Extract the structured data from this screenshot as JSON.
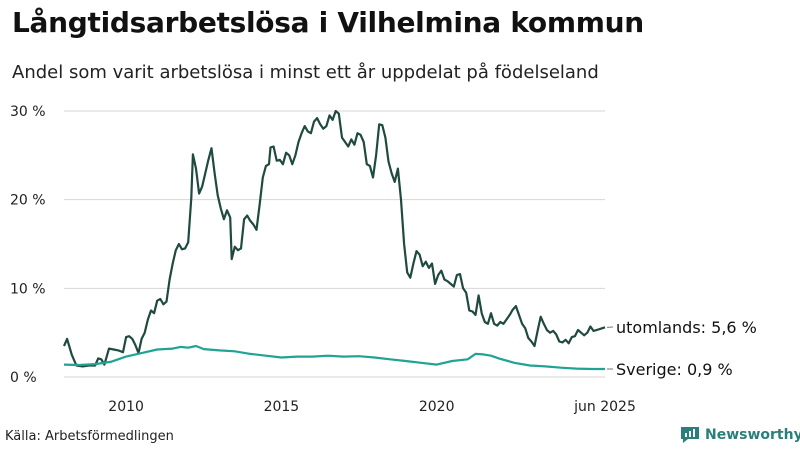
{
  "title": "Långtidsarbetslösa i Vilhelmina kommun",
  "subtitle": "Andel som varit arbetslösa i minst ett år uppdelat på födelseland",
  "source": "Källa: Arbetsförmedlingen",
  "brand": {
    "name": "Newsworthy",
    "icon": "newsworthy-logo-icon",
    "color": "#2a7f7a"
  },
  "chart_data": {
    "type": "line",
    "xlim": [
      2008.0,
      2025.42
    ],
    "ylim": [
      0,
      30
    ],
    "x_ticks": [
      {
        "value": 2010,
        "label": "2010"
      },
      {
        "value": 2015,
        "label": "2015"
      },
      {
        "value": 2020,
        "label": "2020"
      },
      {
        "value": 2025.42,
        "label": "jun 2025"
      }
    ],
    "y_ticks": [
      {
        "value": 0,
        "label": "0 %"
      },
      {
        "value": 10,
        "label": "10 %"
      },
      {
        "value": 20,
        "label": "20 %"
      },
      {
        "value": 30,
        "label": "30 %"
      }
    ],
    "grid": "horizontal",
    "series": [
      {
        "name": "utomlands",
        "end_label": "utomlands: 5,6 %",
        "color": "#1f4a40",
        "points": [
          [
            2008.0,
            3.5
          ],
          [
            2008.1,
            4.3
          ],
          [
            2008.25,
            2.5
          ],
          [
            2008.4,
            1.3
          ],
          [
            2008.6,
            1.2
          ],
          [
            2008.8,
            1.3
          ],
          [
            2009.0,
            1.3
          ],
          [
            2009.1,
            2.1
          ],
          [
            2009.2,
            2.0
          ],
          [
            2009.3,
            1.4
          ],
          [
            2009.45,
            3.2
          ],
          [
            2009.6,
            3.1
          ],
          [
            2009.75,
            3.0
          ],
          [
            2009.9,
            2.8
          ],
          [
            2010.0,
            4.5
          ],
          [
            2010.1,
            4.6
          ],
          [
            2010.2,
            4.3
          ],
          [
            2010.3,
            3.6
          ],
          [
            2010.4,
            2.7
          ],
          [
            2010.5,
            4.3
          ],
          [
            2010.6,
            5.0
          ],
          [
            2010.7,
            6.5
          ],
          [
            2010.8,
            7.5
          ],
          [
            2010.9,
            7.2
          ],
          [
            2011.0,
            8.6
          ],
          [
            2011.1,
            8.8
          ],
          [
            2011.2,
            8.2
          ],
          [
            2011.3,
            8.5
          ],
          [
            2011.4,
            11.0
          ],
          [
            2011.5,
            12.8
          ],
          [
            2011.6,
            14.3
          ],
          [
            2011.7,
            15.0
          ],
          [
            2011.8,
            14.4
          ],
          [
            2011.9,
            14.5
          ],
          [
            2012.0,
            15.2
          ],
          [
            2012.1,
            20.2
          ],
          [
            2012.15,
            25.1
          ],
          [
            2012.25,
            23.5
          ],
          [
            2012.35,
            20.7
          ],
          [
            2012.45,
            21.5
          ],
          [
            2012.55,
            23.0
          ],
          [
            2012.65,
            24.5
          ],
          [
            2012.75,
            25.8
          ],
          [
            2012.85,
            23.0
          ],
          [
            2012.95,
            20.5
          ],
          [
            2013.05,
            19.0
          ],
          [
            2013.15,
            17.8
          ],
          [
            2013.25,
            18.8
          ],
          [
            2013.35,
            18.0
          ],
          [
            2013.4,
            13.3
          ],
          [
            2013.5,
            14.7
          ],
          [
            2013.6,
            14.3
          ],
          [
            2013.7,
            14.5
          ],
          [
            2013.8,
            17.8
          ],
          [
            2013.9,
            18.2
          ],
          [
            2014.0,
            17.6
          ],
          [
            2014.1,
            17.2
          ],
          [
            2014.2,
            16.6
          ],
          [
            2014.3,
            19.5
          ],
          [
            2014.4,
            22.5
          ],
          [
            2014.5,
            23.8
          ],
          [
            2014.6,
            24.0
          ],
          [
            2014.65,
            25.9
          ],
          [
            2014.75,
            26.0
          ],
          [
            2014.85,
            24.4
          ],
          [
            2014.95,
            24.5
          ],
          [
            2015.05,
            24.0
          ],
          [
            2015.15,
            25.3
          ],
          [
            2015.25,
            25.0
          ],
          [
            2015.35,
            24.0
          ],
          [
            2015.45,
            25.0
          ],
          [
            2015.55,
            26.5
          ],
          [
            2015.65,
            27.5
          ],
          [
            2015.75,
            28.3
          ],
          [
            2015.85,
            27.7
          ],
          [
            2015.95,
            27.5
          ],
          [
            2016.05,
            28.8
          ],
          [
            2016.15,
            29.2
          ],
          [
            2016.25,
            28.5
          ],
          [
            2016.35,
            28.0
          ],
          [
            2016.45,
            28.3
          ],
          [
            2016.55,
            29.5
          ],
          [
            2016.65,
            29.0
          ],
          [
            2016.75,
            30.0
          ],
          [
            2016.85,
            29.7
          ],
          [
            2016.95,
            27.0
          ],
          [
            2017.05,
            26.5
          ],
          [
            2017.15,
            26.0
          ],
          [
            2017.25,
            26.8
          ],
          [
            2017.35,
            26.2
          ],
          [
            2017.45,
            27.5
          ],
          [
            2017.55,
            27.3
          ],
          [
            2017.65,
            26.5
          ],
          [
            2017.75,
            24.0
          ],
          [
            2017.85,
            23.8
          ],
          [
            2017.95,
            22.5
          ],
          [
            2018.05,
            25.0
          ],
          [
            2018.15,
            28.5
          ],
          [
            2018.25,
            28.4
          ],
          [
            2018.35,
            27.0
          ],
          [
            2018.45,
            24.3
          ],
          [
            2018.55,
            23.0
          ],
          [
            2018.65,
            22.0
          ],
          [
            2018.75,
            23.5
          ],
          [
            2018.85,
            20.0
          ],
          [
            2018.95,
            15.0
          ],
          [
            2019.05,
            11.8
          ],
          [
            2019.15,
            11.2
          ],
          [
            2019.25,
            12.8
          ],
          [
            2019.35,
            14.2
          ],
          [
            2019.45,
            13.8
          ],
          [
            2019.55,
            12.5
          ],
          [
            2019.65,
            13.0
          ],
          [
            2019.75,
            12.3
          ],
          [
            2019.85,
            12.8
          ],
          [
            2019.95,
            10.5
          ],
          [
            2020.05,
            11.5
          ],
          [
            2020.15,
            12.0
          ],
          [
            2020.25,
            11.0
          ],
          [
            2020.35,
            10.8
          ],
          [
            2020.45,
            10.5
          ],
          [
            2020.55,
            10.2
          ],
          [
            2020.65,
            11.5
          ],
          [
            2020.75,
            11.6
          ],
          [
            2020.85,
            10.0
          ],
          [
            2020.95,
            9.5
          ],
          [
            2021.05,
            7.5
          ],
          [
            2021.15,
            7.4
          ],
          [
            2021.25,
            7.0
          ],
          [
            2021.35,
            9.2
          ],
          [
            2021.45,
            7.2
          ],
          [
            2021.55,
            6.2
          ],
          [
            2021.65,
            6.0
          ],
          [
            2021.75,
            7.2
          ],
          [
            2021.85,
            6.0
          ],
          [
            2021.95,
            5.8
          ],
          [
            2022.05,
            6.2
          ],
          [
            2022.15,
            6.0
          ],
          [
            2022.25,
            6.5
          ],
          [
            2022.35,
            7.0
          ],
          [
            2022.45,
            7.6
          ],
          [
            2022.55,
            8.0
          ],
          [
            2022.65,
            7.0
          ],
          [
            2022.75,
            6.0
          ],
          [
            2022.85,
            5.5
          ],
          [
            2022.95,
            4.4
          ],
          [
            2023.05,
            4.0
          ],
          [
            2023.15,
            3.5
          ],
          [
            2023.25,
            5.2
          ],
          [
            2023.35,
            6.8
          ],
          [
            2023.45,
            6.0
          ],
          [
            2023.55,
            5.3
          ],
          [
            2023.65,
            5.0
          ],
          [
            2023.75,
            5.2
          ],
          [
            2023.85,
            4.8
          ],
          [
            2023.95,
            4.0
          ],
          [
            2024.05,
            3.9
          ],
          [
            2024.15,
            4.2
          ],
          [
            2024.25,
            3.8
          ],
          [
            2024.35,
            4.5
          ],
          [
            2024.45,
            4.6
          ],
          [
            2024.55,
            5.3
          ],
          [
            2024.65,
            5.0
          ],
          [
            2024.75,
            4.7
          ],
          [
            2024.85,
            5.0
          ],
          [
            2024.95,
            5.7
          ],
          [
            2025.05,
            5.2
          ],
          [
            2025.15,
            5.3
          ],
          [
            2025.25,
            5.4
          ],
          [
            2025.42,
            5.6
          ]
        ]
      },
      {
        "name": "Sverige",
        "end_label": "Sverige: 0,9 %",
        "color": "#1fa393",
        "points": [
          [
            2008.0,
            1.4
          ],
          [
            2008.5,
            1.35
          ],
          [
            2009.0,
            1.45
          ],
          [
            2009.5,
            1.7
          ],
          [
            2010.0,
            2.3
          ],
          [
            2010.5,
            2.7
          ],
          [
            2011.0,
            3.1
          ],
          [
            2011.5,
            3.2
          ],
          [
            2011.75,
            3.4
          ],
          [
            2012.0,
            3.3
          ],
          [
            2012.25,
            3.5
          ],
          [
            2012.5,
            3.15
          ],
          [
            2013.0,
            3.0
          ],
          [
            2013.5,
            2.9
          ],
          [
            2014.0,
            2.6
          ],
          [
            2014.5,
            2.4
          ],
          [
            2015.0,
            2.2
          ],
          [
            2015.5,
            2.3
          ],
          [
            2016.0,
            2.3
          ],
          [
            2016.5,
            2.4
          ],
          [
            2017.0,
            2.3
          ],
          [
            2017.5,
            2.35
          ],
          [
            2018.0,
            2.2
          ],
          [
            2018.5,
            2.0
          ],
          [
            2019.0,
            1.8
          ],
          [
            2019.5,
            1.6
          ],
          [
            2020.0,
            1.4
          ],
          [
            2020.5,
            1.8
          ],
          [
            2021.0,
            2.0
          ],
          [
            2021.25,
            2.6
          ],
          [
            2021.5,
            2.55
          ],
          [
            2021.75,
            2.4
          ],
          [
            2022.0,
            2.1
          ],
          [
            2022.5,
            1.6
          ],
          [
            2023.0,
            1.3
          ],
          [
            2023.5,
            1.2
          ],
          [
            2024.0,
            1.05
          ],
          [
            2024.5,
            0.95
          ],
          [
            2025.0,
            0.9
          ],
          [
            2025.42,
            0.9
          ]
        ]
      }
    ]
  }
}
